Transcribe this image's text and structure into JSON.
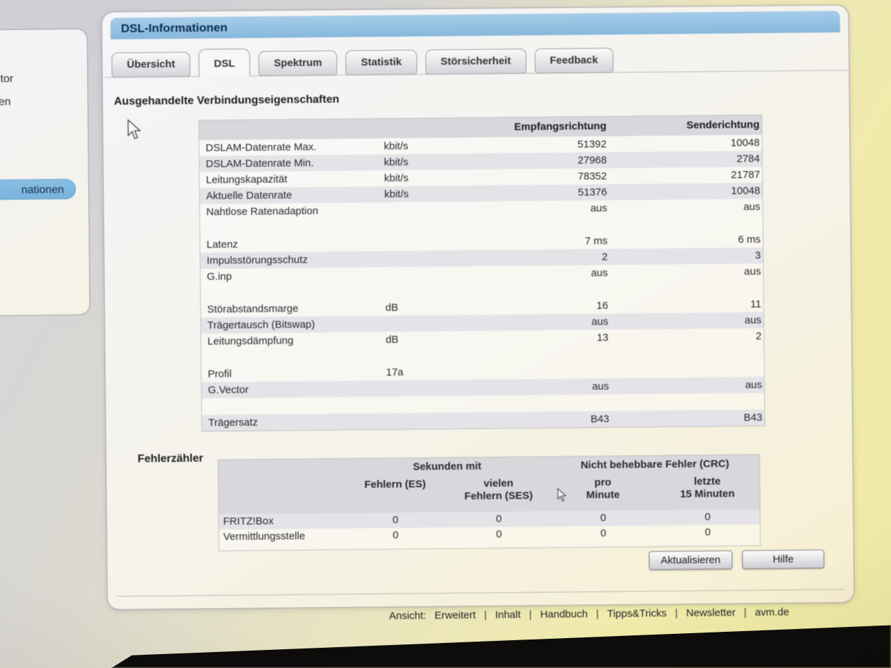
{
  "window": {
    "title": "DSL-Informationen"
  },
  "sidebar": {
    "fragments": [
      "tor",
      "en"
    ],
    "selected_fragment": "nationen"
  },
  "tabs": [
    {
      "label": "Übersicht",
      "active": false
    },
    {
      "label": "DSL",
      "active": true
    },
    {
      "label": "Spektrum",
      "active": false
    },
    {
      "label": "Statistik",
      "active": false
    },
    {
      "label": "Störsicherheit",
      "active": false
    },
    {
      "label": "Feedback",
      "active": false
    }
  ],
  "connection": {
    "heading": "Ausgehandelte Verbindungseigenschaften",
    "col_rx": "Empfangsrichtung",
    "col_tx": "Senderichtung",
    "groups": [
      [
        {
          "label": "DSLAM-Datenrate Max.",
          "unit": "kbit/s",
          "rx": "51392",
          "tx": "10048"
        },
        {
          "label": "DSLAM-Datenrate Min.",
          "unit": "kbit/s",
          "rx": "27968",
          "tx": "2784"
        },
        {
          "label": "Leitungskapazität",
          "unit": "kbit/s",
          "rx": "78352",
          "tx": "21787"
        },
        {
          "label": "Aktuelle Datenrate",
          "unit": "kbit/s",
          "rx": "51376",
          "tx": "10048"
        },
        {
          "label": "Nahtlose Ratenadaption",
          "unit": "",
          "rx": "aus",
          "tx": "aus"
        }
      ],
      [
        {
          "label": "Latenz",
          "unit": "",
          "rx": "7 ms",
          "tx": "6 ms"
        },
        {
          "label": "Impulsstörungsschutz",
          "unit": "",
          "rx": "2",
          "tx": "3"
        },
        {
          "label": "G.inp",
          "unit": "",
          "rx": "aus",
          "tx": "aus"
        }
      ],
      [
        {
          "label": "Störabstandsmarge",
          "unit": "dB",
          "rx": "16",
          "tx": "11"
        },
        {
          "label": "Trägertausch (Bitswap)",
          "unit": "",
          "rx": "aus",
          "tx": "aus"
        },
        {
          "label": "Leitungsdämpfung",
          "unit": "dB",
          "rx": "13",
          "tx": "2"
        }
      ],
      [
        {
          "label": "Profil",
          "unit": "17a",
          "rx": "",
          "tx": ""
        },
        {
          "label": "G.Vector",
          "unit": "",
          "rx": "aus",
          "tx": "aus"
        }
      ],
      [
        {
          "label": "Trägersatz",
          "unit": "",
          "rx": "B43",
          "tx": "B43"
        }
      ]
    ]
  },
  "errors": {
    "heading": "Fehlerzähler",
    "group_headers": {
      "seconds": "Sekunden mit",
      "crc": "Nicht behebbare Fehler (CRC)"
    },
    "col_headers": [
      [
        "Fehlern (ES)"
      ],
      [
        "vielen",
        "Fehlern (SES)"
      ],
      [
        "pro",
        "Minute"
      ],
      [
        "letzte",
        "15 Minuten"
      ]
    ],
    "rows": [
      {
        "label": "FRITZ!Box",
        "values": [
          "0",
          "0",
          "0",
          "0"
        ]
      },
      {
        "label": "Vermittlungsstelle",
        "values": [
          "0",
          "0",
          "0",
          "0"
        ]
      }
    ]
  },
  "buttons": {
    "refresh": "Aktualisieren",
    "help": "Hilfe"
  },
  "footer": {
    "view_label": "Ansicht:",
    "view_value": "Erweitert",
    "separator": "|",
    "links": [
      "Inhalt",
      "Handbuch",
      "Tipps&Tricks",
      "Newsletter",
      "avm.de"
    ]
  },
  "colors": {
    "titlebar_blue": "#a6cde9",
    "selected_pill_blue": "#8abfe4",
    "header_band_gray": "#d8d7db",
    "row_stripe_gray": "#e4e3e7"
  }
}
